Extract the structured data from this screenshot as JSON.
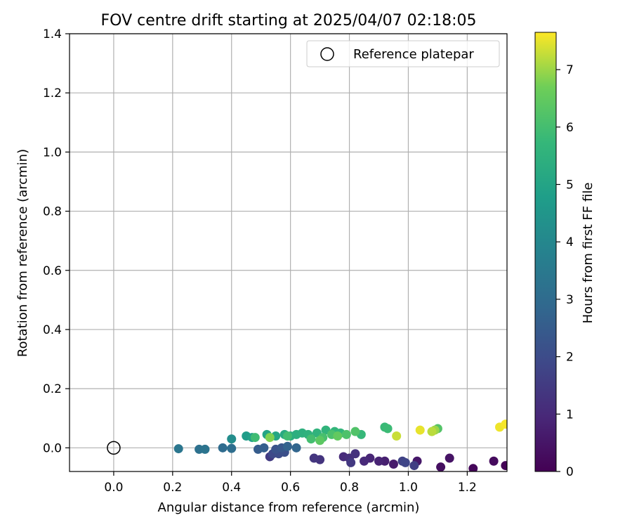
{
  "chart_data": {
    "type": "scatter",
    "title": "FOV centre drift starting at 2025/04/07 02:18:05",
    "xlabel": "Angular distance from reference (arcmin)",
    "ylabel": "Rotation from reference (arcmin)",
    "xlim": [
      -0.15,
      1.335
    ],
    "ylim": [
      -0.08,
      1.4
    ],
    "xticks": [
      "0.0",
      "0.2",
      "0.4",
      "0.6",
      "0.8",
      "1.0",
      "1.2"
    ],
    "yticks": [
      "0.0",
      "0.2",
      "0.4",
      "0.6",
      "0.8",
      "1.0",
      "1.2",
      "1.4"
    ],
    "grid": true,
    "legend": {
      "placement": "top-right",
      "entries": [
        "Reference platepar"
      ]
    },
    "reference_point": {
      "x": 0.0,
      "y": 0.0
    },
    "colorbar": {
      "label": "Hours from first FF file",
      "colormap": "viridis",
      "range": [
        0,
        7.65
      ],
      "ticks": [
        "0",
        "1",
        "2",
        "3",
        "4",
        "5",
        "6",
        "7"
      ]
    },
    "points": [
      {
        "x": 1.33,
        "y": -0.06,
        "c": 0.05
      },
      {
        "x": 1.22,
        "y": -0.07,
        "c": 0.15
      },
      {
        "x": 1.29,
        "y": -0.045,
        "c": 0.25
      },
      {
        "x": 1.11,
        "y": -0.065,
        "c": 0.35
      },
      {
        "x": 1.14,
        "y": -0.035,
        "c": 0.45
      },
      {
        "x": 1.03,
        "y": -0.045,
        "c": 0.55
      },
      {
        "x": 0.95,
        "y": -0.055,
        "c": 0.65
      },
      {
        "x": 0.92,
        "y": -0.045,
        "c": 0.75
      },
      {
        "x": 0.9,
        "y": -0.045,
        "c": 0.85
      },
      {
        "x": 0.87,
        "y": -0.035,
        "c": 0.9
      },
      {
        "x": 0.85,
        "y": -0.045,
        "c": 1.0
      },
      {
        "x": 0.78,
        "y": -0.03,
        "c": 1.05
      },
      {
        "x": 0.8,
        "y": -0.035,
        "c": 1.15
      },
      {
        "x": 0.82,
        "y": -0.02,
        "c": 1.25
      },
      {
        "x": 0.7,
        "y": -0.04,
        "c": 1.3
      },
      {
        "x": 0.68,
        "y": -0.035,
        "c": 1.35
      },
      {
        "x": 0.805,
        "y": -0.05,
        "c": 1.45
      },
      {
        "x": 0.53,
        "y": -0.03,
        "c": 1.5
      },
      {
        "x": 1.02,
        "y": -0.06,
        "c": 1.6
      },
      {
        "x": 0.98,
        "y": -0.045,
        "c": 1.7
      },
      {
        "x": 0.99,
        "y": -0.05,
        "c": 1.8
      },
      {
        "x": 0.54,
        "y": -0.02,
        "c": 1.9
      },
      {
        "x": 0.56,
        "y": -0.02,
        "c": 2.0
      },
      {
        "x": 0.58,
        "y": -0.015,
        "c": 2.1
      },
      {
        "x": 0.55,
        "y": -0.005,
        "c": 2.2
      },
      {
        "x": 0.57,
        "y": 0.0,
        "c": 2.35
      },
      {
        "x": 0.49,
        "y": -0.005,
        "c": 2.5
      },
      {
        "x": 0.51,
        "y": 0.0,
        "c": 2.6
      },
      {
        "x": 0.59,
        "y": 0.005,
        "c": 2.7
      },
      {
        "x": 0.62,
        "y": 0.0,
        "c": 2.8
      },
      {
        "x": 0.37,
        "y": 0.0,
        "c": 3.0
      },
      {
        "x": 0.4,
        "y": -0.002,
        "c": 3.1
      },
      {
        "x": 0.29,
        "y": -0.005,
        "c": 3.2
      },
      {
        "x": 0.31,
        "y": -0.005,
        "c": 3.3
      },
      {
        "x": 0.22,
        "y": -0.003,
        "c": 3.4
      },
      {
        "x": 0.4,
        "y": 0.03,
        "c": 4.2
      },
      {
        "x": 0.45,
        "y": 0.04,
        "c": 4.7
      },
      {
        "x": 0.47,
        "y": 0.035,
        "c": 4.9
      },
      {
        "x": 0.52,
        "y": 0.045,
        "c": 5.0
      },
      {
        "x": 0.55,
        "y": 0.04,
        "c": 5.1
      },
      {
        "x": 0.58,
        "y": 0.045,
        "c": 5.2
      },
      {
        "x": 0.6,
        "y": 0.04,
        "c": 5.3
      },
      {
        "x": 0.62,
        "y": 0.045,
        "c": 5.4
      },
      {
        "x": 0.64,
        "y": 0.05,
        "c": 5.45
      },
      {
        "x": 0.66,
        "y": 0.045,
        "c": 5.5
      },
      {
        "x": 0.69,
        "y": 0.05,
        "c": 5.55
      },
      {
        "x": 0.72,
        "y": 0.06,
        "c": 5.6
      },
      {
        "x": 0.75,
        "y": 0.055,
        "c": 5.65
      },
      {
        "x": 0.77,
        "y": 0.05,
        "c": 5.7
      },
      {
        "x": 0.84,
        "y": 0.045,
        "c": 5.75
      },
      {
        "x": 0.92,
        "y": 0.07,
        "c": 5.8
      },
      {
        "x": 0.93,
        "y": 0.065,
        "c": 5.85
      },
      {
        "x": 0.48,
        "y": 0.035,
        "c": 5.9
      },
      {
        "x": 0.59,
        "y": 0.04,
        "c": 5.95
      },
      {
        "x": 0.67,
        "y": 0.03,
        "c": 6.0
      },
      {
        "x": 0.71,
        "y": 0.035,
        "c": 6.05
      },
      {
        "x": 0.74,
        "y": 0.045,
        "c": 6.1
      },
      {
        "x": 0.79,
        "y": 0.045,
        "c": 6.15
      },
      {
        "x": 0.82,
        "y": 0.055,
        "c": 6.2
      },
      {
        "x": 1.1,
        "y": 0.065,
        "c": 6.25
      },
      {
        "x": 0.7,
        "y": 0.025,
        "c": 6.4
      },
      {
        "x": 0.76,
        "y": 0.04,
        "c": 6.5
      },
      {
        "x": 0.53,
        "y": 0.035,
        "c": 6.8
      },
      {
        "x": 1.09,
        "y": 0.06,
        "c": 7.0
      },
      {
        "x": 1.08,
        "y": 0.055,
        "c": 7.2
      },
      {
        "x": 0.96,
        "y": 0.04,
        "c": 7.3
      },
      {
        "x": 1.04,
        "y": 0.06,
        "c": 7.5
      },
      {
        "x": 1.31,
        "y": 0.07,
        "c": 7.55
      },
      {
        "x": 1.33,
        "y": 0.08,
        "c": 7.6
      }
    ]
  }
}
